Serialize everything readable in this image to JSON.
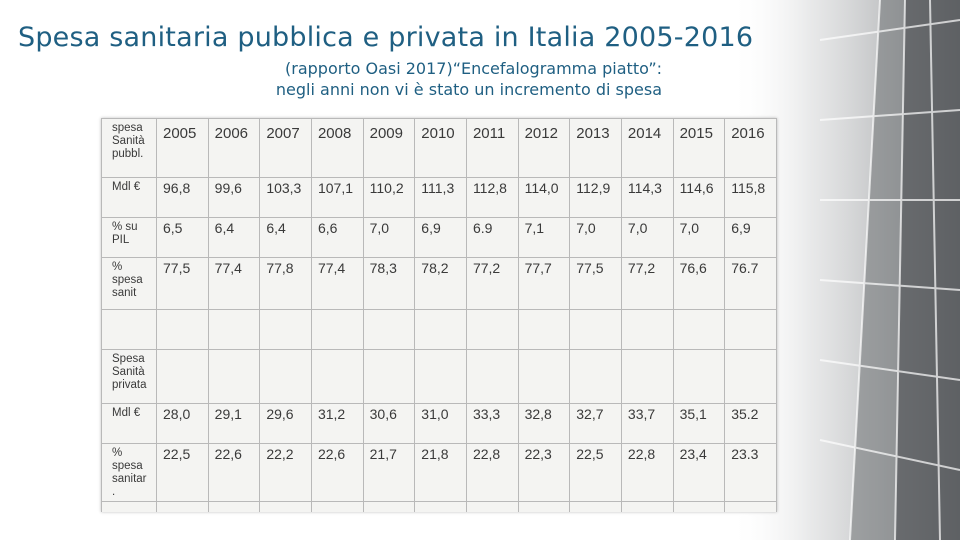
{
  "title": "Spesa sanitaria pubblica e privata in Italia  2005-2016",
  "subtitle_line1": "(rapporto Oasi 2017)“Encefalogramma piatto”:",
  "subtitle_line2": "negli anni non vi è stato un incremento di spesa",
  "table": {
    "header_label": "spesa Sanità pubbl.",
    "years": [
      "2005",
      "2006",
      "2007",
      "2008",
      "2009",
      "2010",
      "2011",
      "2012",
      "2013",
      "2014",
      "2015",
      "2016"
    ],
    "rows": [
      {
        "label": "Mdl €",
        "values": [
          "96,8",
          "99,6",
          "103,3",
          "107,1",
          "110,2",
          "111,3",
          "112,8",
          "114,0",
          "112,9",
          "114,3",
          "114,6",
          "115,8"
        ]
      },
      {
        "label": "% su PIL",
        "values": [
          "6,5",
          "6,4",
          "6,4",
          "6,6",
          "7,0",
          "6,9",
          "6.9",
          "7,1",
          "7,0",
          "7,0",
          "7,0",
          "6,9"
        ]
      },
      {
        "label": "% spesa sanit",
        "values": [
          "77,5",
          "77,4",
          "77,8",
          "77,4",
          "78,3",
          "78,2",
          "77,2",
          "77,7",
          "77,5",
          "77,2",
          "76,6",
          "76.7"
        ]
      },
      {
        "label": "",
        "values": [
          "",
          "",
          "",
          "",
          "",
          "",
          "",
          "",
          "",
          "",
          "",
          ""
        ]
      },
      {
        "label": "Spesa Sanità privata",
        "values": [
          "",
          "",
          "",
          "",
          "",
          "",
          "",
          "",
          "",
          "",
          "",
          ""
        ]
      },
      {
        "label": "Mdl €",
        "values": [
          "28,0",
          "29,1",
          "29,6",
          "31,2",
          "30,6",
          "31,0",
          "33,3",
          "32,8",
          "32,7",
          "33,7",
          "35,1",
          "35.2"
        ]
      },
      {
        "label": "% spesa sanitar .",
        "values": [
          "22,5",
          "22,6",
          "22,2",
          "22,6",
          "21,7",
          "21,8",
          "22,8",
          "22,3",
          "22,5",
          "22,8",
          "23,4",
          "23.3"
        ]
      },
      {
        "label": "",
        "values": [
          "",
          "",
          "",
          "",
          "",
          "",
          "",
          "",
          "",
          "",
          "",
          ""
        ]
      }
    ]
  }
}
